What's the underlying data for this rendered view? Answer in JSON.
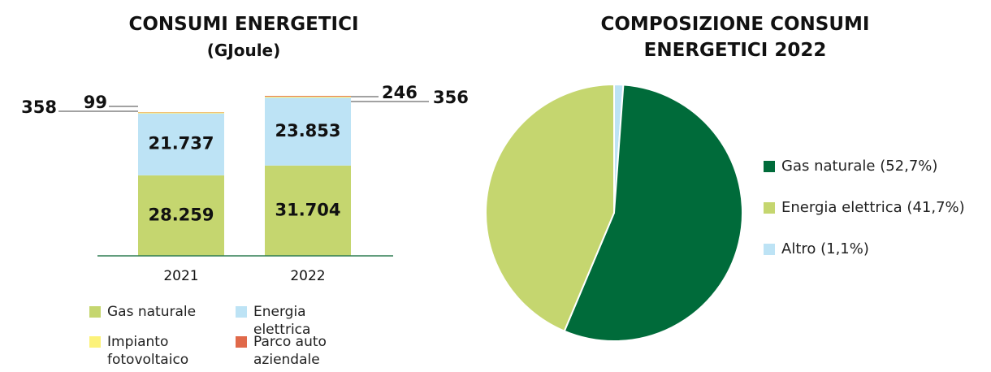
{
  "chart_data": [
    {
      "type": "stacked-bar",
      "title": "CONSUMI ENERGETICI",
      "subtitle": "(GJoule)",
      "categories": [
        "2021",
        "2022"
      ],
      "series": [
        {
          "name": "Gas naturale",
          "color": "#c5d66f",
          "values": [
            28259,
            31704
          ],
          "value_labels": [
            "28.259",
            "31.704"
          ]
        },
        {
          "name": "Energia elettrica",
          "color": "#bde3f5",
          "values": [
            21737,
            23853
          ],
          "value_labels": [
            "21.737",
            "23.853"
          ]
        },
        {
          "name": "Impianto fotovoltaico",
          "color": "#fcf27a",
          "values": [
            358,
            356
          ]
        },
        {
          "name": "Parco auto aziendale",
          "color": "#e0694a",
          "values": [
            99,
            246
          ]
        }
      ]
    },
    {
      "type": "pie",
      "title": "COMPOSIZIONE CONSUMI ENERGETICI 2022",
      "categories": [
        "Gas naturale (52,7%)",
        "Energia elettrica (41,7%)",
        "Altro (1,1%)"
      ],
      "values": [
        52.7,
        41.7,
        1.1
      ],
      "colors": [
        "#006b3a",
        "#c5d66f",
        "#bde3f5"
      ]
    }
  ]
}
